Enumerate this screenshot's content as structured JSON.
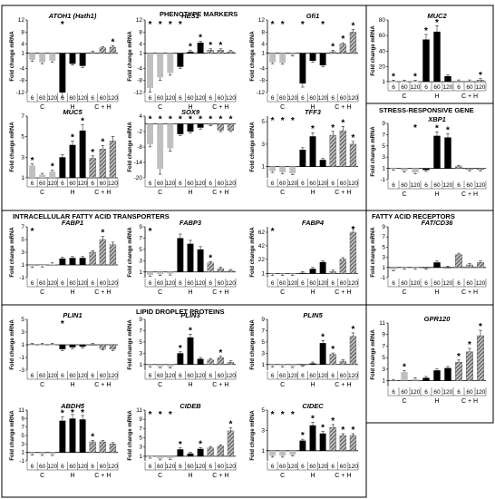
{
  "figure": {
    "sections": [
      {
        "title": "PHENOTYPE MARKERS",
        "box": "phenotype"
      },
      {
        "title": "STRESS-RESPONSIVE GENE",
        "box": "stress"
      },
      {
        "title": "INTRACELLULAR FATTY ACID TRANSPORTERS",
        "box": "fat"
      },
      {
        "title": "FATTY ACID RECEPTORS",
        "box": "far"
      },
      {
        "title": "LIPID DROPLET PROTEINS",
        "box": "ldp"
      }
    ],
    "time_labels": [
      "6",
      "60",
      "120"
    ],
    "group_labels": [
      "C",
      "H",
      "C + H"
    ]
  },
  "chart_data": [
    {
      "id": "atoh1",
      "type": "bar",
      "title": "ATOH1 (Hath1)",
      "ylabel": "Fold change mRNA",
      "yticks": [
        "12",
        "8",
        "4",
        "1",
        "-4",
        "-8",
        "-12"
      ],
      "ylim": [
        -12,
        12
      ],
      "baseline": 1,
      "values": [
        -1.2,
        -2.0,
        -1.5,
        -12.0,
        -2.5,
        -3.2,
        1.2,
        2.8,
        3.0
      ],
      "stars": [
        false,
        false,
        false,
        true,
        false,
        false,
        false,
        false,
        true
      ]
    },
    {
      "id": "hes1",
      "type": "bar",
      "title": "HES1",
      "ylabel": "Fold change mRNA",
      "yticks": [
        "12",
        "8",
        "4",
        "1",
        "-4",
        "-8",
        "-12"
      ],
      "ylim": [
        -12,
        12
      ],
      "baseline": 1,
      "values": [
        -10.5,
        -7.0,
        -5.5,
        -3.5,
        1.5,
        4.5,
        2.0,
        2.0,
        1.5
      ],
      "stars": [
        true,
        true,
        true,
        true,
        true,
        true,
        true,
        true,
        false
      ]
    },
    {
      "id": "gfi1",
      "type": "bar",
      "title": "Gfi1",
      "ylabel": "Fold change mRNA",
      "yticks": [
        "12",
        "8",
        "4",
        "1",
        "-4",
        "-8",
        "-12"
      ],
      "ylim": [
        -12,
        12
      ],
      "baseline": 1,
      "values": [
        -2.0,
        -2.2,
        0.5,
        -9.0,
        -1.5,
        -3.0,
        1.5,
        4.0,
        8.0
      ],
      "stars": [
        true,
        true,
        false,
        true,
        false,
        true,
        true,
        true,
        true
      ]
    },
    {
      "id": "muc2",
      "type": "bar",
      "title": "MUC2",
      "ylabel": "Fold change mRNA",
      "yticks": [
        "80",
        "60",
        "40",
        "20",
        "1"
      ],
      "ylim": [
        1,
        80
      ],
      "baseline": 1,
      "values": [
        1.2,
        1.2,
        1.2,
        55,
        65,
        8,
        1.5,
        1.5,
        3
      ],
      "stars": [
        true,
        false,
        true,
        true,
        true,
        false,
        false,
        false,
        true
      ]
    },
    {
      "id": "muc5",
      "type": "bar",
      "title": "MUC5",
      "ylabel": "Fold change mRNA",
      "yticks": [
        "7",
        "5",
        "3",
        "1"
      ],
      "ylim": [
        1,
        7
      ],
      "baseline": 1,
      "values": [
        2.2,
        1.3,
        1.6,
        3.0,
        4.2,
        5.6,
        2.9,
        3.8,
        4.6
      ],
      "stars": [
        true,
        false,
        true,
        false,
        true,
        true,
        true,
        true,
        false
      ]
    },
    {
      "id": "sox9",
      "type": "bar",
      "title": "SOX9",
      "ylabel": "Fold change mRNA",
      "yticks": [
        "4",
        "-2",
        "-8",
        "-14",
        "-20"
      ],
      "ylim": [
        -20,
        4
      ],
      "baseline": 1,
      "values": [
        -7.0,
        -16.5,
        -8.5,
        -3.0,
        -2.0,
        -0.5,
        0.8,
        -1.5,
        -1.5
      ],
      "stars": [
        true,
        true,
        true,
        true,
        true,
        true,
        true,
        true,
        true
      ]
    },
    {
      "id": "tff3",
      "type": "bar",
      "title": "TFF3",
      "ylabel": "Fold change mRNA",
      "yticks": [
        "5",
        "3",
        "1"
      ],
      "ylim": [
        0,
        5.5
      ],
      "baseline": 1,
      "values": [
        0.6,
        0.5,
        0.4,
        2.5,
        3.7,
        1.6,
        3.8,
        4.2,
        3.0
      ],
      "stars": [
        true,
        true,
        true,
        false,
        true,
        false,
        true,
        true,
        true
      ]
    },
    {
      "id": "xbp1",
      "type": "bar",
      "title": "XBP1",
      "ylabel": "Fold change mRNA",
      "yticks": [
        "9",
        "7",
        "5",
        "3",
        "1",
        "-1"
      ],
      "ylim": [
        -1,
        9
      ],
      "baseline": 1,
      "values": [
        0.9,
        0.6,
        0.3,
        0.7,
        6.8,
        6.5,
        1.3,
        0.8,
        0.8
      ],
      "stars": [
        false,
        false,
        true,
        false,
        true,
        true,
        false,
        false,
        false
      ]
    },
    {
      "id": "fabp1",
      "type": "bar",
      "title": "FABP1",
      "ylabel": "Fold change mRNA",
      "yticks": [
        "7",
        "5",
        "3",
        "1",
        "-1"
      ],
      "ylim": [
        -1,
        7
      ],
      "baseline": 1,
      "values": [
        0.8,
        0.9,
        1.1,
        2.0,
        2.1,
        2.1,
        3.0,
        5.0,
        4.2
      ],
      "stars": [
        true,
        false,
        false,
        false,
        false,
        false,
        false,
        true,
        false
      ]
    },
    {
      "id": "fabp3",
      "type": "bar",
      "title": "FABP3",
      "ylabel": "Fold change mRNA",
      "yticks": [
        "9",
        "7",
        "5",
        "3",
        "1"
      ],
      "ylim": [
        0,
        9
      ],
      "baseline": 1,
      "values": [
        0.5,
        0.6,
        0.7,
        7.0,
        6.0,
        5.0,
        2.6,
        1.6,
        1.2
      ],
      "stars": [
        true,
        false,
        false,
        false,
        false,
        false,
        true,
        false,
        false
      ]
    },
    {
      "id": "fabp4",
      "type": "bar",
      "title": "FABP4",
      "ylabel": "Fold change mRNA",
      "yticks": [
        "62",
        "42",
        "22",
        "1"
      ],
      "ylim": [
        -5,
        70
      ],
      "baseline": 1,
      "values": [
        0.5,
        0.6,
        0.8,
        2.0,
        8.0,
        18.0,
        4.0,
        22.0,
        62.0
      ],
      "stars": [
        true,
        false,
        false,
        false,
        false,
        false,
        false,
        false,
        true
      ]
    },
    {
      "id": "fatcd36",
      "type": "bar",
      "title": "FAT/CD36",
      "ylabel": "Fold change mRNA",
      "yticks": [
        "9",
        "7",
        "5",
        "3",
        "1",
        "-1"
      ],
      "ylim": [
        -1,
        9
      ],
      "baseline": 1,
      "values": [
        0.6,
        0.9,
        0.9,
        0.9,
        2.0,
        1.0,
        3.5,
        1.5,
        2.0
      ],
      "stars": [
        false,
        false,
        false,
        false,
        false,
        false,
        false,
        false,
        false
      ]
    },
    {
      "id": "plin1",
      "type": "bar",
      "title": "PLIN1",
      "ylabel": "Fold change mRNA",
      "yticks": [
        "5",
        "3",
        "1",
        "-1",
        "-3"
      ],
      "ylim": [
        -3,
        5
      ],
      "baseline": 1,
      "values": [
        1.0,
        1.0,
        1.0,
        0.3,
        0.6,
        0.7,
        1.0,
        0.4,
        0.3
      ],
      "stars": [
        false,
        false,
        false,
        true,
        false,
        false,
        false,
        false,
        false
      ]
    },
    {
      "id": "plin3",
      "type": "bar",
      "title": "PLIN3",
      "ylabel": "Fold change mRNA",
      "yticks": [
        "9",
        "7",
        "5",
        "3",
        "1"
      ],
      "ylim": [
        0,
        9
      ],
      "baseline": 1,
      "values": [
        0.8,
        0.6,
        0.6,
        3.0,
        5.8,
        2.0,
        1.8,
        2.2,
        1.4
      ],
      "stars": [
        false,
        false,
        false,
        true,
        true,
        false,
        false,
        true,
        false
      ]
    },
    {
      "id": "plin5",
      "type": "bar",
      "title": "PLIN5",
      "ylabel": "Fold change mRNA",
      "yticks": [
        "9",
        "7",
        "5",
        "3",
        "1"
      ],
      "ylim": [
        0,
        9
      ],
      "baseline": 1,
      "values": [
        0.8,
        0.8,
        0.7,
        0.9,
        1.2,
        4.8,
        2.8,
        1.6,
        6.0
      ],
      "stars": [
        false,
        false,
        false,
        false,
        false,
        true,
        true,
        false,
        true
      ]
    },
    {
      "id": "gpr120",
      "type": "bar",
      "title": "GPR120",
      "ylabel": "Fold change mRNA",
      "yticks": [
        "11",
        "9",
        "7",
        "5",
        "3",
        "1"
      ],
      "ylim": [
        0,
        11
      ],
      "baseline": 1,
      "values": [
        1.0,
        2.5,
        1.3,
        1.5,
        2.8,
        3.2,
        4.2,
        6.0,
        8.8
      ],
      "stars": [
        false,
        true,
        false,
        false,
        false,
        false,
        true,
        true,
        true
      ]
    },
    {
      "id": "abdh5",
      "type": "bar",
      "title": "ABDH5",
      "ylabel": "Fold change mRNA",
      "yticks": [
        "11",
        "9",
        "7",
        "5",
        "3",
        "1",
        "-1"
      ],
      "ylim": [
        -1,
        11
      ],
      "baseline": 1,
      "values": [
        0.7,
        0.6,
        0.6,
        8.5,
        9.0,
        8.8,
        3.5,
        3.5,
        3.0
      ],
      "stars": [
        false,
        false,
        false,
        true,
        true,
        true,
        true,
        false,
        false
      ]
    },
    {
      "id": "cideb",
      "type": "bar",
      "title": "CIDEB",
      "ylabel": "Fold change mRNA",
      "yticks": [
        "11",
        "9",
        "7",
        "5",
        "3",
        "1"
      ],
      "ylim": [
        0,
        11
      ],
      "baseline": 1,
      "values": [
        0.9,
        0.5,
        0.6,
        2.5,
        1.6,
        2.6,
        2.8,
        3.2,
        6.5
      ],
      "stars": [
        true,
        true,
        true,
        true,
        false,
        true,
        false,
        false,
        true
      ]
    },
    {
      "id": "cidec",
      "type": "bar",
      "title": "CIDEC",
      "ylabel": "Fold change mRNA",
      "yticks": [
        "5",
        "3",
        "1"
      ],
      "ylim": [
        0,
        5
      ],
      "baseline": 1,
      "values": [
        0.5,
        0.5,
        0.6,
        2.0,
        3.5,
        2.7,
        3.3,
        2.5,
        2.5
      ],
      "stars": [
        true,
        true,
        true,
        true,
        true,
        true,
        true,
        true,
        true
      ]
    }
  ]
}
